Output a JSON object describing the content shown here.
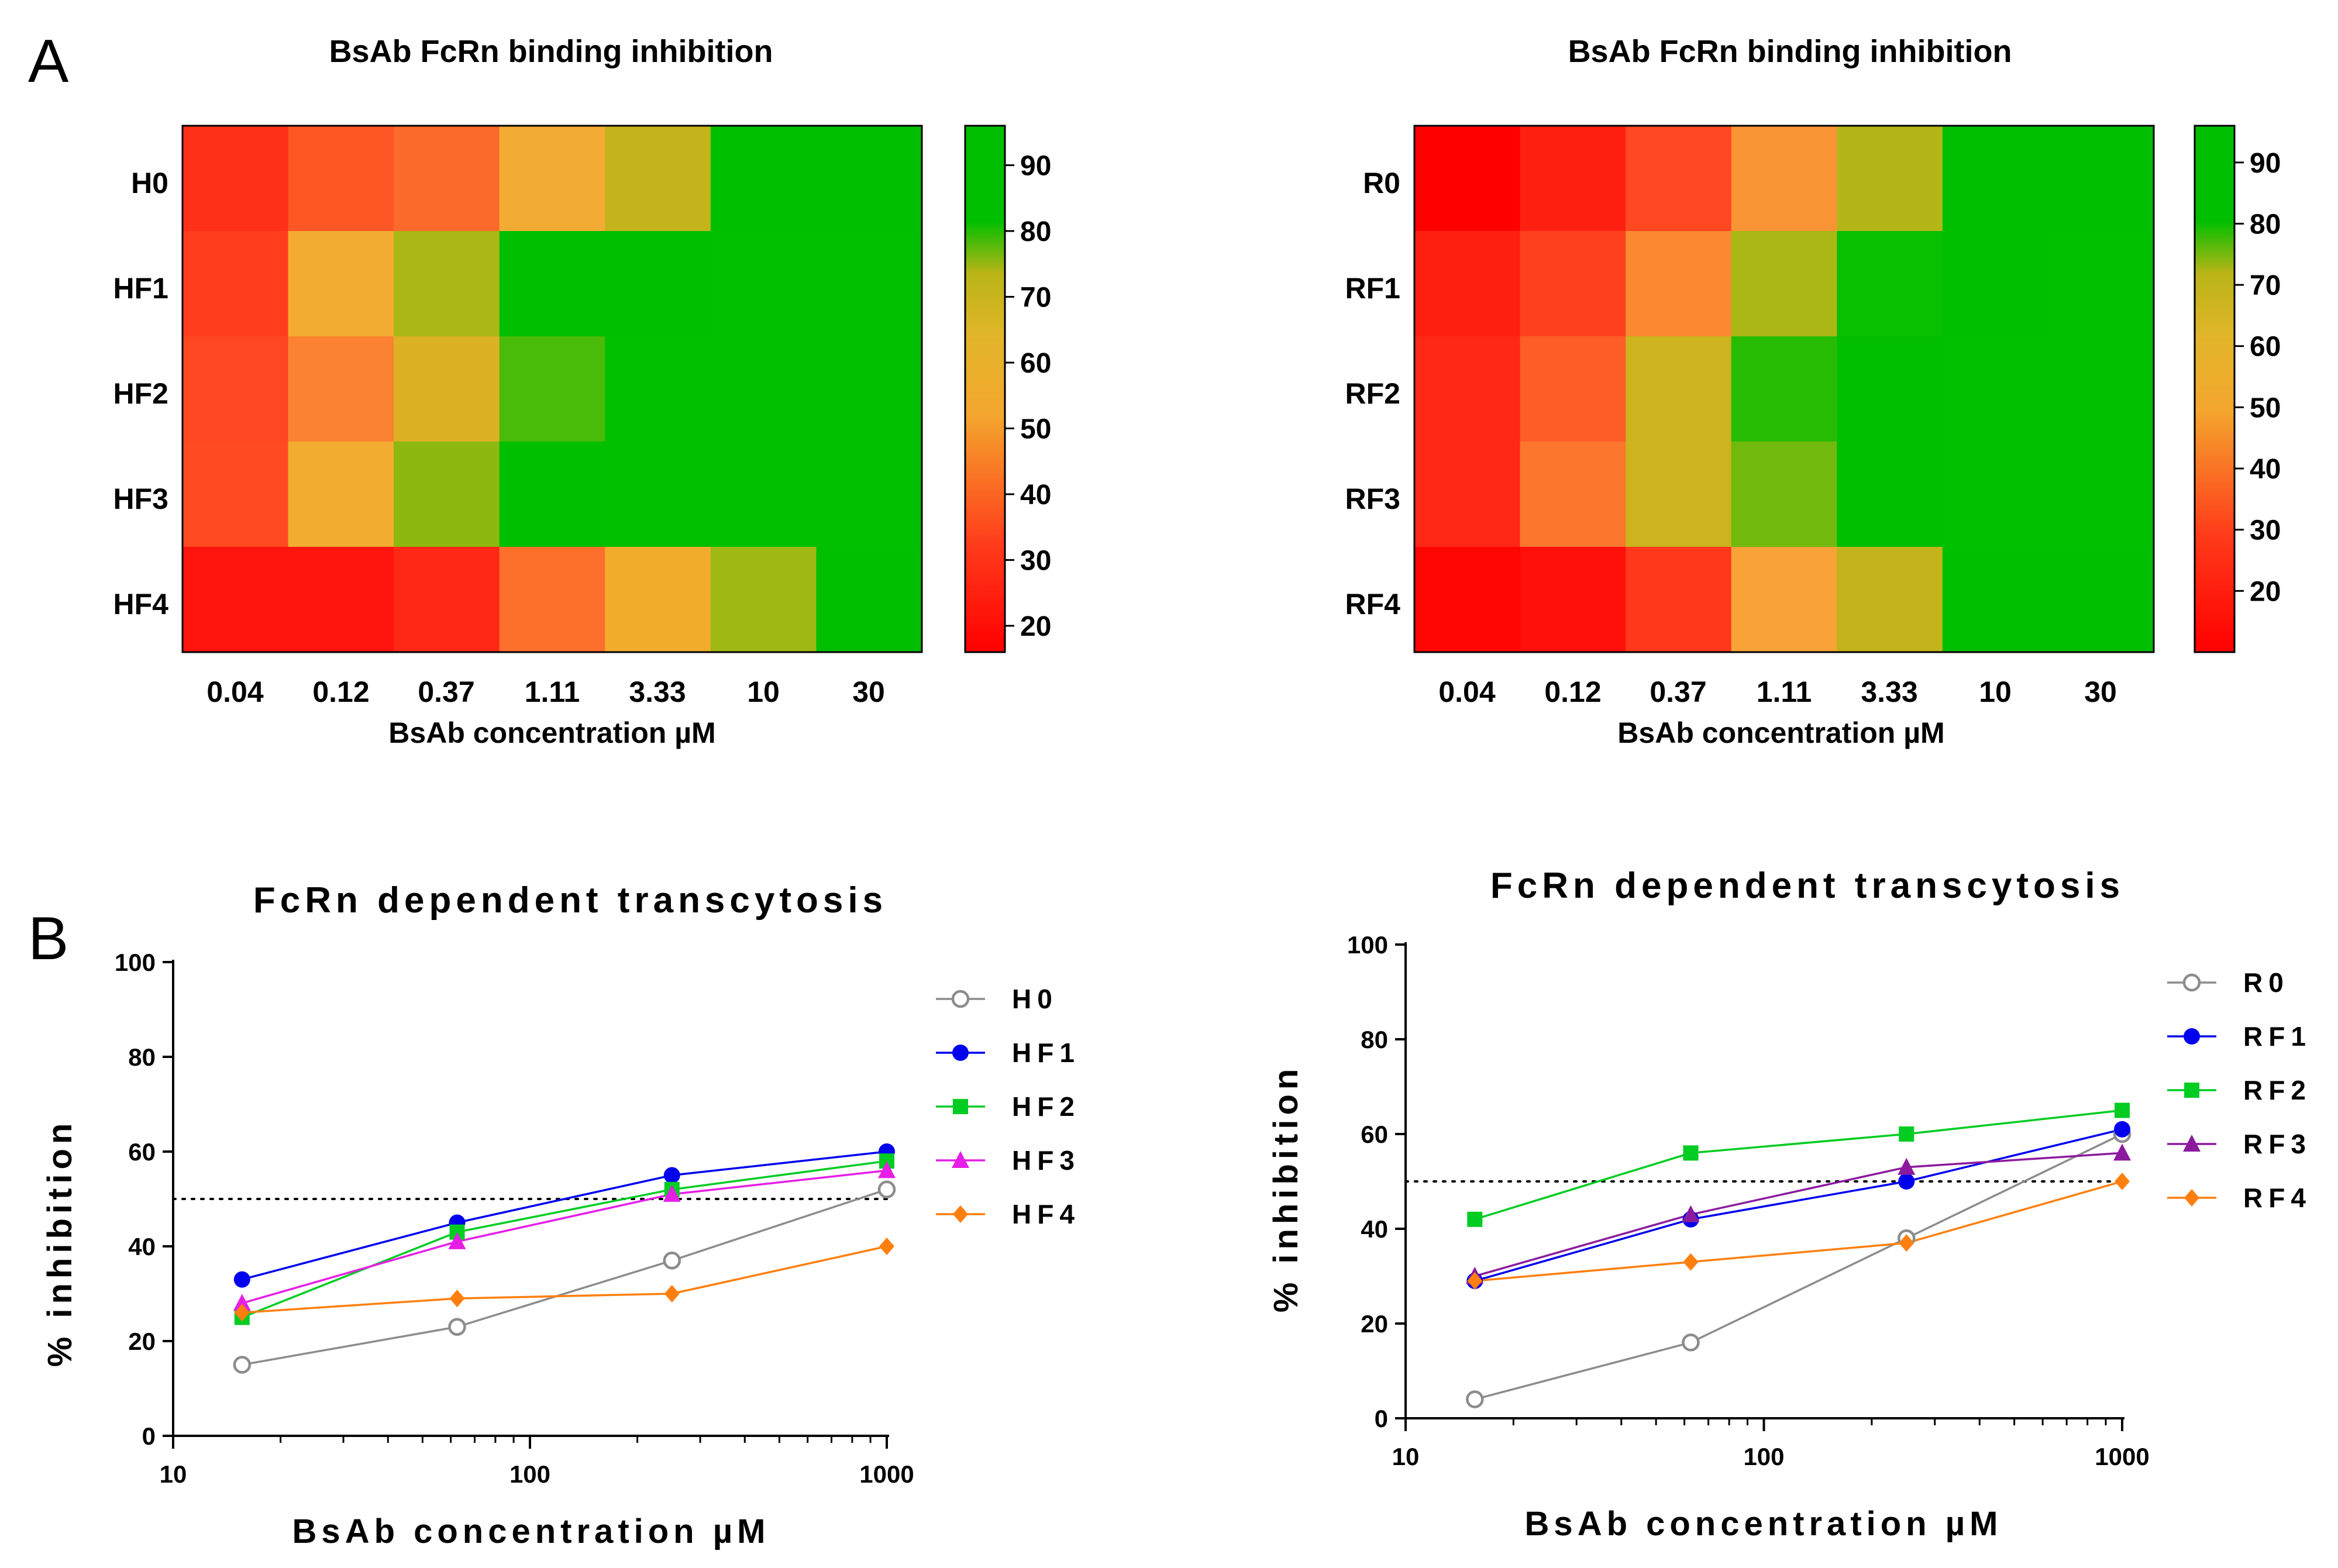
{
  "panel_labels": {
    "a": "A",
    "b": "B"
  },
  "colors": {
    "heat_low": "#ff0000",
    "heat_mid": "#f4a62e",
    "heat_high": "#00bf00",
    "H0": "#8c8c8c",
    "HF1": "#0000ee",
    "HF2": "#00cc22",
    "HF3": "#e61ee6",
    "HF4": "#ff7f0e",
    "R0": "#8c8c8c",
    "RF1": "#0000ee",
    "RF2": "#00cc22",
    "RF3": "#8b1a9e",
    "RF4": "#ff7f0e",
    "threshold": "#000000"
  },
  "chart_data": [
    {
      "id": "heatmap-h",
      "type": "heatmap",
      "title": "BsAb FcRn binding inhibition",
      "xlabel": "BsAb concentration µM",
      "x_categories": [
        "0.04",
        "0.12",
        "0.37",
        "1.11",
        "3.33",
        "10",
        "30"
      ],
      "y_categories": [
        "H0",
        "HF1",
        "HF2",
        "HF3",
        "HF4"
      ],
      "values": [
        [
          27,
          37,
          40,
          54,
          67,
          89,
          92
        ],
        [
          31,
          55,
          72,
          90,
          93,
          94,
          95
        ],
        [
          34,
          44,
          62,
          81,
          94,
          95,
          95
        ],
        [
          35,
          56,
          76,
          89,
          94,
          95,
          95
        ],
        [
          18,
          18,
          24,
          41,
          57,
          74,
          91
        ]
      ],
      "colorbar": {
        "min": 16,
        "max": 96,
        "ticks": [
          "20",
          "30",
          "40",
          "50",
          "60",
          "70",
          "80",
          "90"
        ]
      }
    },
    {
      "id": "heatmap-r",
      "type": "heatmap",
      "title": "BsAb FcRn binding inhibition",
      "xlabel": "BsAb concentration µM",
      "x_categories": [
        "0.04",
        "0.12",
        "0.37",
        "1.11",
        "3.33",
        "10",
        "30"
      ],
      "y_categories": [
        "R0",
        "RF1",
        "RF2",
        "RF3",
        "RF4"
      ],
      "values": [
        [
          10,
          22,
          34,
          47,
          70,
          91,
          93
        ],
        [
          22,
          32,
          45,
          72,
          87,
          93,
          94
        ],
        [
          24,
          38,
          65,
          84,
          93,
          94,
          94
        ],
        [
          24,
          42,
          65,
          78,
          93,
          94,
          94
        ],
        [
          12,
          16,
          29,
          49,
          67,
          90,
          93
        ]
      ],
      "colorbar": {
        "min": 10,
        "max": 96,
        "ticks": [
          "20",
          "30",
          "40",
          "50",
          "60",
          "70",
          "80",
          "90"
        ]
      }
    },
    {
      "id": "line-h",
      "type": "line",
      "title": "FcRn dependent transcytosis",
      "xlabel": "BsAb concentration µM",
      "ylabel": "% inhibition",
      "xscale": "log",
      "xlim": [
        10,
        1000
      ],
      "ylim": [
        0,
        100
      ],
      "xticks": [
        "10",
        "100",
        "1000"
      ],
      "yticks": [
        "0",
        "20",
        "40",
        "60",
        "80",
        "100"
      ],
      "threshold": 50,
      "x": [
        15.6,
        62.5,
        250,
        1000
      ],
      "series": [
        {
          "name": "H0",
          "marker": "open-circle",
          "values": [
            15,
            23,
            37,
            52
          ]
        },
        {
          "name": "HF1",
          "marker": "circle",
          "values": [
            33,
            45,
            55,
            60
          ]
        },
        {
          "name": "HF2",
          "marker": "square",
          "values": [
            25,
            43,
            52,
            58
          ]
        },
        {
          "name": "HF3",
          "marker": "triangle",
          "values": [
            28,
            41,
            51,
            56
          ]
        },
        {
          "name": "HF4",
          "marker": "diamond",
          "values": [
            26,
            29,
            30,
            40
          ]
        }
      ]
    },
    {
      "id": "line-r",
      "type": "line",
      "title": "FcRn dependent transcytosis",
      "xlabel": "BsAb concentration µM",
      "ylabel": "% inhibition",
      "xscale": "log",
      "xlim": [
        10,
        1000
      ],
      "ylim": [
        0,
        100
      ],
      "xticks": [
        "10",
        "100",
        "1000"
      ],
      "yticks": [
        "0",
        "20",
        "40",
        "60",
        "80",
        "100"
      ],
      "threshold": 50,
      "x": [
        15.6,
        62.5,
        250,
        1000
      ],
      "series": [
        {
          "name": "R0",
          "marker": "open-circle",
          "values": [
            4,
            16,
            38,
            60
          ]
        },
        {
          "name": "RF1",
          "marker": "circle",
          "values": [
            29,
            42,
            50,
            61
          ]
        },
        {
          "name": "RF2",
          "marker": "square",
          "values": [
            42,
            56,
            60,
            65
          ]
        },
        {
          "name": "RF3",
          "marker": "triangle",
          "values": [
            30,
            43,
            53,
            56
          ]
        },
        {
          "name": "RF4",
          "marker": "diamond",
          "values": [
            29,
            33,
            37,
            50
          ]
        }
      ]
    }
  ]
}
